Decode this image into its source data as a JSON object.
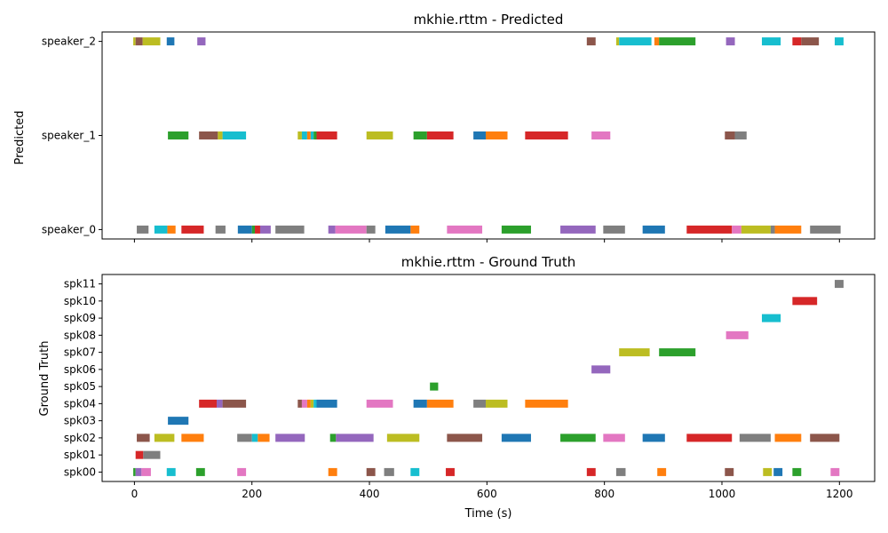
{
  "colors": [
    "#1f77b4",
    "#ff7f0e",
    "#2ca02c",
    "#d62728",
    "#9467bd",
    "#8c564b",
    "#e377c2",
    "#7f7f7f",
    "#bcbd22",
    "#17becf"
  ],
  "chart_data": [
    {
      "type": "timeline",
      "title": "mkhie.rttm - Predicted",
      "ylabel": "Predicted",
      "xlabel": "",
      "xlim": [
        -55,
        1260
      ],
      "xticks": [
        0,
        200,
        400,
        600,
        800,
        1000,
        1200
      ],
      "show_xtick_labels": false,
      "categories": [
        "speaker_0",
        "speaker_1",
        "speaker_2"
      ],
      "segments": [
        {
          "row": "speaker_0",
          "start": 4,
          "end": 24,
          "color": "#7f7f7f"
        },
        {
          "row": "speaker_0",
          "start": 34,
          "end": 56,
          "color": "#17becf"
        },
        {
          "row": "speaker_0",
          "start": 56,
          "end": 70,
          "color": "#ff7f0e"
        },
        {
          "row": "speaker_0",
          "start": 80,
          "end": 118,
          "color": "#d62728"
        },
        {
          "row": "speaker_0",
          "start": 138,
          "end": 155,
          "color": "#7f7f7f"
        },
        {
          "row": "speaker_0",
          "start": 176,
          "end": 200,
          "color": "#1f77b4"
        },
        {
          "row": "speaker_0",
          "start": 200,
          "end": 205,
          "color": "#2ca02c"
        },
        {
          "row": "speaker_0",
          "start": 205,
          "end": 214,
          "color": "#d62728"
        },
        {
          "row": "speaker_0",
          "start": 214,
          "end": 232,
          "color": "#9467bd"
        },
        {
          "row": "speaker_0",
          "start": 240,
          "end": 289,
          "color": "#7f7f7f"
        },
        {
          "row": "speaker_0",
          "start": 330,
          "end": 342,
          "color": "#9467bd"
        },
        {
          "row": "speaker_0",
          "start": 342,
          "end": 395,
          "color": "#e377c2"
        },
        {
          "row": "speaker_0",
          "start": 395,
          "end": 410,
          "color": "#7f7f7f"
        },
        {
          "row": "speaker_0",
          "start": 427,
          "end": 470,
          "color": "#1f77b4"
        },
        {
          "row": "speaker_0",
          "start": 470,
          "end": 485,
          "color": "#ff7f0e"
        },
        {
          "row": "speaker_0",
          "start": 532,
          "end": 592,
          "color": "#e377c2"
        },
        {
          "row": "speaker_0",
          "start": 625,
          "end": 675,
          "color": "#2ca02c"
        },
        {
          "row": "speaker_0",
          "start": 725,
          "end": 785,
          "color": "#9467bd"
        },
        {
          "row": "speaker_0",
          "start": 798,
          "end": 835,
          "color": "#7f7f7f"
        },
        {
          "row": "speaker_0",
          "start": 865,
          "end": 903,
          "color": "#1f77b4"
        },
        {
          "row": "speaker_0",
          "start": 940,
          "end": 1017,
          "color": "#d62728"
        },
        {
          "row": "speaker_0",
          "start": 1017,
          "end": 1033,
          "color": "#e377c2"
        },
        {
          "row": "speaker_0",
          "start": 1033,
          "end": 1083,
          "color": "#bcbd22"
        },
        {
          "row": "speaker_0",
          "start": 1083,
          "end": 1090,
          "color": "#7f7f7f"
        },
        {
          "row": "speaker_0",
          "start": 1090,
          "end": 1135,
          "color": "#ff7f0e"
        },
        {
          "row": "speaker_0",
          "start": 1150,
          "end": 1202,
          "color": "#7f7f7f"
        },
        {
          "row": "speaker_1",
          "start": 57,
          "end": 92,
          "color": "#2ca02c"
        },
        {
          "row": "speaker_1",
          "start": 110,
          "end": 142,
          "color": "#8c564b"
        },
        {
          "row": "speaker_1",
          "start": 142,
          "end": 150,
          "color": "#bcbd22"
        },
        {
          "row": "speaker_1",
          "start": 150,
          "end": 190,
          "color": "#17becf"
        },
        {
          "row": "speaker_1",
          "start": 278,
          "end": 285,
          "color": "#bcbd22"
        },
        {
          "row": "speaker_1",
          "start": 285,
          "end": 294,
          "color": "#17becf"
        },
        {
          "row": "speaker_1",
          "start": 294,
          "end": 300,
          "color": "#ff7f0e"
        },
        {
          "row": "speaker_1",
          "start": 300,
          "end": 305,
          "color": "#17becf"
        },
        {
          "row": "speaker_1",
          "start": 305,
          "end": 310,
          "color": "#2ca02c"
        },
        {
          "row": "speaker_1",
          "start": 310,
          "end": 345,
          "color": "#d62728"
        },
        {
          "row": "speaker_1",
          "start": 395,
          "end": 440,
          "color": "#bcbd22"
        },
        {
          "row": "speaker_1",
          "start": 475,
          "end": 498,
          "color": "#2ca02c"
        },
        {
          "row": "speaker_1",
          "start": 498,
          "end": 543,
          "color": "#d62728"
        },
        {
          "row": "speaker_1",
          "start": 577,
          "end": 598,
          "color": "#1f77b4"
        },
        {
          "row": "speaker_1",
          "start": 598,
          "end": 635,
          "color": "#ff7f0e"
        },
        {
          "row": "speaker_1",
          "start": 665,
          "end": 738,
          "color": "#d62728"
        },
        {
          "row": "speaker_1",
          "start": 778,
          "end": 810,
          "color": "#e377c2"
        },
        {
          "row": "speaker_1",
          "start": 1005,
          "end": 1022,
          "color": "#8c564b"
        },
        {
          "row": "speaker_1",
          "start": 1022,
          "end": 1042,
          "color": "#7f7f7f"
        },
        {
          "row": "speaker_2",
          "start": -2,
          "end": 2,
          "color": "#bcbd22"
        },
        {
          "row": "speaker_2",
          "start": 2,
          "end": 14,
          "color": "#8c564b"
        },
        {
          "row": "speaker_2",
          "start": 14,
          "end": 44,
          "color": "#bcbd22"
        },
        {
          "row": "speaker_2",
          "start": 55,
          "end": 68,
          "color": "#1f77b4"
        },
        {
          "row": "speaker_2",
          "start": 107,
          "end": 121,
          "color": "#9467bd"
        },
        {
          "row": "speaker_2",
          "start": 770,
          "end": 785,
          "color": "#8c564b"
        },
        {
          "row": "speaker_2",
          "start": 820,
          "end": 825,
          "color": "#bcbd22"
        },
        {
          "row": "speaker_2",
          "start": 825,
          "end": 880,
          "color": "#17becf"
        },
        {
          "row": "speaker_2",
          "start": 885,
          "end": 893,
          "color": "#ff7f0e"
        },
        {
          "row": "speaker_2",
          "start": 893,
          "end": 955,
          "color": "#2ca02c"
        },
        {
          "row": "speaker_2",
          "start": 1007,
          "end": 1022,
          "color": "#9467bd"
        },
        {
          "row": "speaker_2",
          "start": 1068,
          "end": 1100,
          "color": "#17becf"
        },
        {
          "row": "speaker_2",
          "start": 1120,
          "end": 1135,
          "color": "#d62728"
        },
        {
          "row": "speaker_2",
          "start": 1135,
          "end": 1165,
          "color": "#8c564b"
        },
        {
          "row": "speaker_2",
          "start": 1192,
          "end": 1207,
          "color": "#17becf"
        }
      ]
    },
    {
      "type": "timeline",
      "title": "mkhie.rttm - Ground Truth",
      "ylabel": "Ground Truth",
      "xlabel": "Time (s)",
      "xlim": [
        -55,
        1260
      ],
      "xticks": [
        0,
        200,
        400,
        600,
        800,
        1000,
        1200
      ],
      "show_xtick_labels": true,
      "categories": [
        "spk00",
        "spk01",
        "spk02",
        "spk03",
        "spk04",
        "spk05",
        "spk06",
        "spk07",
        "spk08",
        "spk09",
        "spk10",
        "spk11"
      ],
      "segments": [
        {
          "row": "spk00",
          "start": -2,
          "end": 2,
          "color": "#2ca02c"
        },
        {
          "row": "spk00",
          "start": 2,
          "end": 12,
          "color": "#9467bd"
        },
        {
          "row": "spk00",
          "start": 12,
          "end": 28,
          "color": "#e377c2"
        },
        {
          "row": "spk00",
          "start": 55,
          "end": 70,
          "color": "#17becf"
        },
        {
          "row": "spk00",
          "start": 105,
          "end": 120,
          "color": "#2ca02c"
        },
        {
          "row": "spk00",
          "start": 175,
          "end": 190,
          "color": "#e377c2"
        },
        {
          "row": "spk00",
          "start": 330,
          "end": 345,
          "color": "#ff7f0e"
        },
        {
          "row": "spk00",
          "start": 395,
          "end": 410,
          "color": "#8c564b"
        },
        {
          "row": "spk00",
          "start": 425,
          "end": 442,
          "color": "#7f7f7f"
        },
        {
          "row": "spk00",
          "start": 470,
          "end": 485,
          "color": "#17becf"
        },
        {
          "row": "spk00",
          "start": 530,
          "end": 545,
          "color": "#d62728"
        },
        {
          "row": "spk00",
          "start": 770,
          "end": 785,
          "color": "#d62728"
        },
        {
          "row": "spk00",
          "start": 820,
          "end": 836,
          "color": "#7f7f7f"
        },
        {
          "row": "spk00",
          "start": 890,
          "end": 905,
          "color": "#ff7f0e"
        },
        {
          "row": "spk00",
          "start": 1005,
          "end": 1020,
          "color": "#8c564b"
        },
        {
          "row": "spk00",
          "start": 1070,
          "end": 1085,
          "color": "#bcbd22"
        },
        {
          "row": "spk00",
          "start": 1088,
          "end": 1103,
          "color": "#1f77b4"
        },
        {
          "row": "spk00",
          "start": 1120,
          "end": 1135,
          "color": "#2ca02c"
        },
        {
          "row": "spk00",
          "start": 1185,
          "end": 1200,
          "color": "#e377c2"
        },
        {
          "row": "spk01",
          "start": 2,
          "end": 15,
          "color": "#d62728"
        },
        {
          "row": "spk01",
          "start": 15,
          "end": 44,
          "color": "#7f7f7f"
        },
        {
          "row": "spk02",
          "start": 4,
          "end": 26,
          "color": "#8c564b"
        },
        {
          "row": "spk02",
          "start": 34,
          "end": 68,
          "color": "#bcbd22"
        },
        {
          "row": "spk02",
          "start": 80,
          "end": 118,
          "color": "#ff7f0e"
        },
        {
          "row": "spk02",
          "start": 175,
          "end": 200,
          "color": "#7f7f7f"
        },
        {
          "row": "spk02",
          "start": 200,
          "end": 210,
          "color": "#17becf"
        },
        {
          "row": "spk02",
          "start": 210,
          "end": 230,
          "color": "#ff7f0e"
        },
        {
          "row": "spk02",
          "start": 240,
          "end": 290,
          "color": "#9467bd"
        },
        {
          "row": "spk02",
          "start": 333,
          "end": 343,
          "color": "#2ca02c"
        },
        {
          "row": "spk02",
          "start": 343,
          "end": 407,
          "color": "#9467bd"
        },
        {
          "row": "spk02",
          "start": 430,
          "end": 485,
          "color": "#bcbd22"
        },
        {
          "row": "spk02",
          "start": 532,
          "end": 592,
          "color": "#8c564b"
        },
        {
          "row": "spk02",
          "start": 625,
          "end": 675,
          "color": "#1f77b4"
        },
        {
          "row": "spk02",
          "start": 725,
          "end": 785,
          "color": "#2ca02c"
        },
        {
          "row": "spk02",
          "start": 798,
          "end": 835,
          "color": "#e377c2"
        },
        {
          "row": "spk02",
          "start": 865,
          "end": 903,
          "color": "#1f77b4"
        },
        {
          "row": "spk02",
          "start": 940,
          "end": 1017,
          "color": "#d62728"
        },
        {
          "row": "spk02",
          "start": 1030,
          "end": 1083,
          "color": "#7f7f7f"
        },
        {
          "row": "spk02",
          "start": 1090,
          "end": 1135,
          "color": "#ff7f0e"
        },
        {
          "row": "spk02",
          "start": 1150,
          "end": 1200,
          "color": "#8c564b"
        },
        {
          "row": "spk03",
          "start": 57,
          "end": 92,
          "color": "#1f77b4"
        },
        {
          "row": "spk04",
          "start": 110,
          "end": 140,
          "color": "#d62728"
        },
        {
          "row": "spk04",
          "start": 140,
          "end": 150,
          "color": "#9467bd"
        },
        {
          "row": "spk04",
          "start": 150,
          "end": 190,
          "color": "#8c564b"
        },
        {
          "row": "spk04",
          "start": 278,
          "end": 285,
          "color": "#8c564b"
        },
        {
          "row": "spk04",
          "start": 285,
          "end": 294,
          "color": "#e377c2"
        },
        {
          "row": "spk04",
          "start": 294,
          "end": 300,
          "color": "#ff7f0e"
        },
        {
          "row": "spk04",
          "start": 300,
          "end": 305,
          "color": "#bcbd22"
        },
        {
          "row": "spk04",
          "start": 305,
          "end": 310,
          "color": "#17becf"
        },
        {
          "row": "spk04",
          "start": 310,
          "end": 345,
          "color": "#1f77b4"
        },
        {
          "row": "spk04",
          "start": 395,
          "end": 440,
          "color": "#e377c2"
        },
        {
          "row": "spk04",
          "start": 475,
          "end": 498,
          "color": "#1f77b4"
        },
        {
          "row": "spk04",
          "start": 498,
          "end": 543,
          "color": "#ff7f0e"
        },
        {
          "row": "spk04",
          "start": 577,
          "end": 598,
          "color": "#7f7f7f"
        },
        {
          "row": "spk04",
          "start": 598,
          "end": 635,
          "color": "#bcbd22"
        },
        {
          "row": "spk04",
          "start": 665,
          "end": 738,
          "color": "#ff7f0e"
        },
        {
          "row": "spk05",
          "start": 503,
          "end": 517,
          "color": "#2ca02c"
        },
        {
          "row": "spk06",
          "start": 778,
          "end": 810,
          "color": "#9467bd"
        },
        {
          "row": "spk07",
          "start": 825,
          "end": 877,
          "color": "#bcbd22"
        },
        {
          "row": "spk07",
          "start": 893,
          "end": 955,
          "color": "#2ca02c"
        },
        {
          "row": "spk08",
          "start": 1007,
          "end": 1045,
          "color": "#e377c2"
        },
        {
          "row": "spk09",
          "start": 1068,
          "end": 1100,
          "color": "#17becf"
        },
        {
          "row": "spk10",
          "start": 1120,
          "end": 1162,
          "color": "#d62728"
        },
        {
          "row": "spk11",
          "start": 1192,
          "end": 1207,
          "color": "#7f7f7f"
        }
      ]
    }
  ]
}
